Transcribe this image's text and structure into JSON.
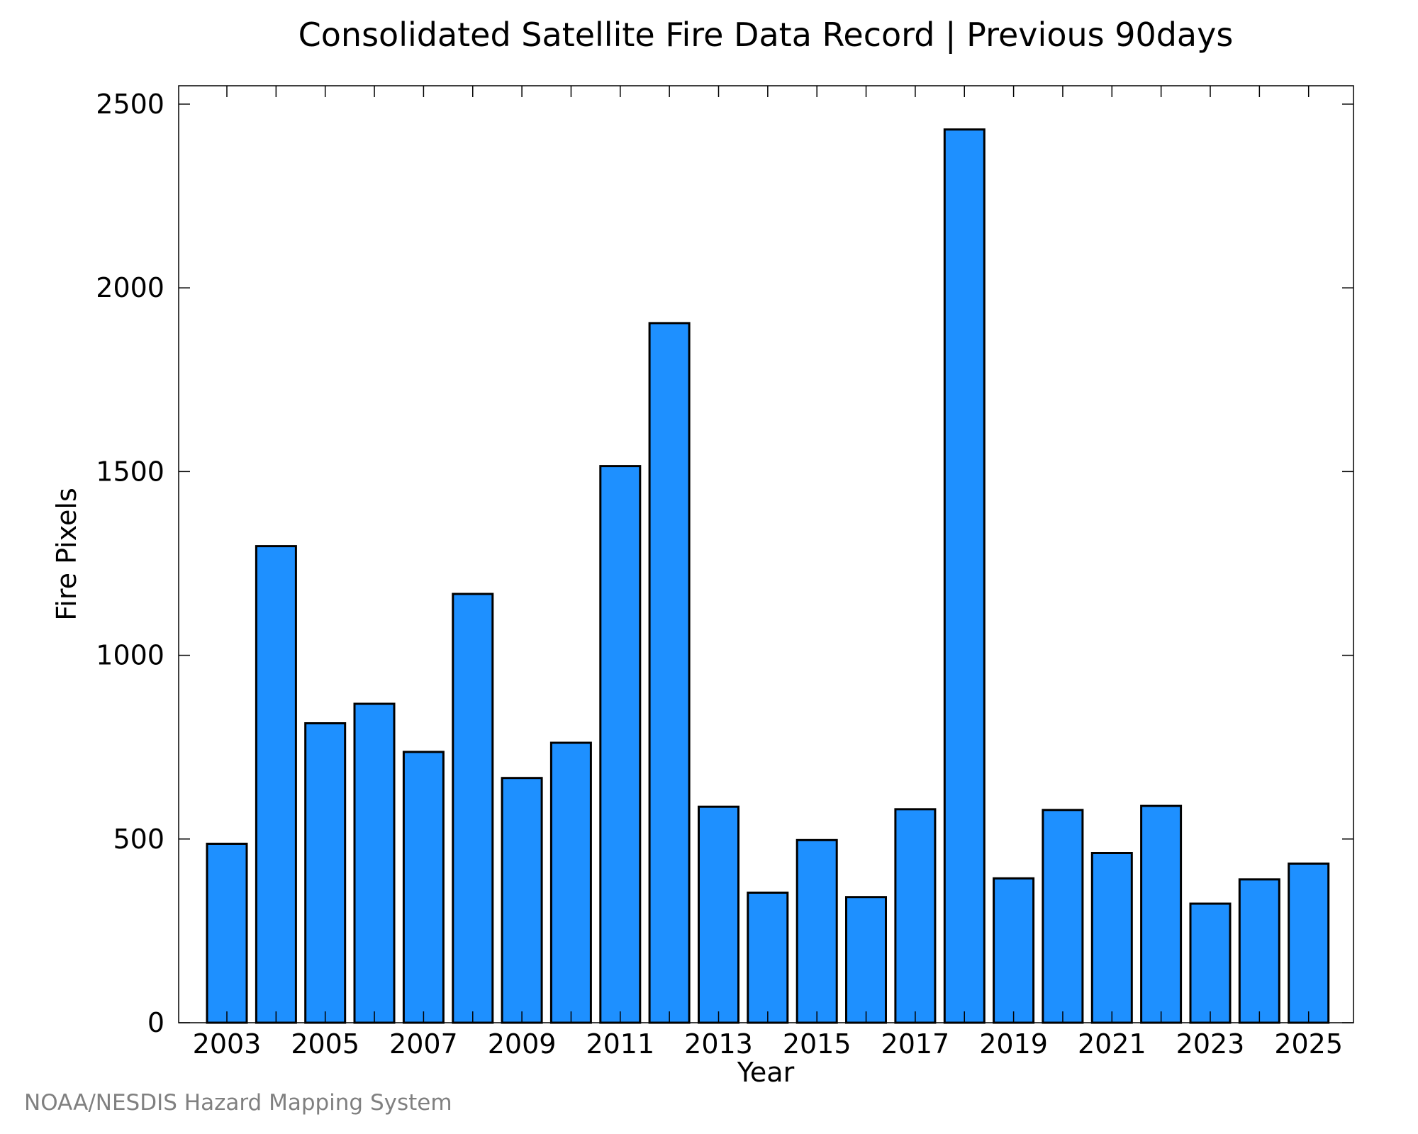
{
  "chart_data": {
    "type": "bar",
    "title": "Consolidated Satellite Fire Data Record | Previous 90days",
    "xlabel": "Year",
    "ylabel": "Fire Pixels",
    "categories": [
      2003,
      2004,
      2005,
      2006,
      2007,
      2008,
      2009,
      2010,
      2011,
      2012,
      2013,
      2014,
      2015,
      2016,
      2017,
      2018,
      2019,
      2020,
      2021,
      2022,
      2023,
      2024,
      2025
    ],
    "values": [
      487,
      1297,
      815,
      868,
      737,
      1167,
      666,
      762,
      1515,
      1904,
      588,
      354,
      497,
      342,
      581,
      2431,
      393,
      579,
      462,
      590,
      324,
      390,
      433
    ],
    "x_ticks": [
      "2003",
      "2005",
      "2007",
      "2009",
      "2011",
      "2013",
      "2015",
      "2017",
      "2019",
      "2021",
      "2023",
      "2025"
    ],
    "y_ticks": [
      "0",
      "500",
      "1000",
      "1500",
      "2000",
      "2500"
    ],
    "ylim": [
      0,
      2550
    ],
    "grid": false,
    "bar_color": "#1E90FF",
    "bar_edge_color": "#000000"
  },
  "credit": "NOAA/NESDIS Hazard Mapping System",
  "credit_color": "#808080"
}
